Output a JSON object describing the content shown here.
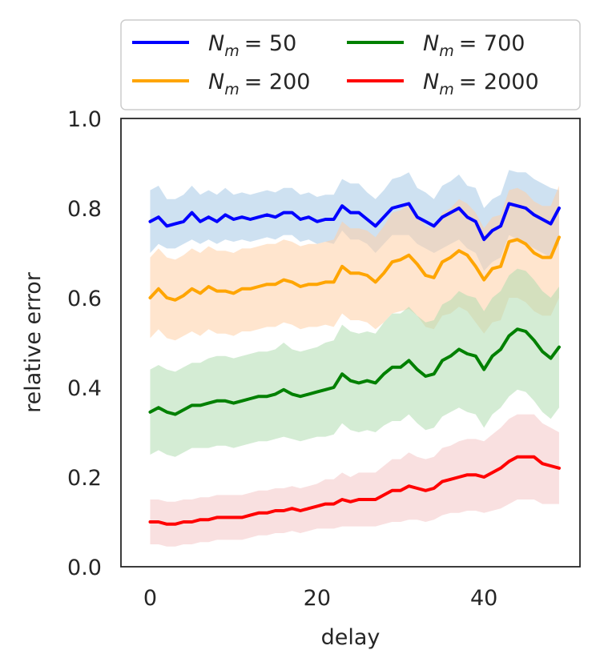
{
  "chart_data": {
    "type": "line",
    "title": "",
    "xlabel": "delay",
    "ylabel": "relative error",
    "xlim": [
      -3.5,
      51.5
    ],
    "ylim": [
      0.0,
      1.0
    ],
    "xticks": [
      0,
      20,
      40
    ],
    "xtick_labels": [
      "0",
      "20",
      "40"
    ],
    "yticks": [
      0.0,
      0.2,
      0.4,
      0.6,
      0.8,
      1.0
    ],
    "ytick_labels": [
      "0.0",
      "0.2",
      "0.4",
      "0.6",
      "0.8",
      "1.0"
    ],
    "grid": false,
    "legend_position": "above plot, two columns",
    "x": [
      0,
      1,
      2,
      3,
      4,
      5,
      6,
      7,
      8,
      9,
      10,
      11,
      12,
      13,
      14,
      15,
      16,
      17,
      18,
      19,
      20,
      21,
      22,
      23,
      24,
      25,
      26,
      27,
      28,
      29,
      30,
      31,
      32,
      33,
      34,
      35,
      36,
      37,
      38,
      39,
      40,
      41,
      42,
      43,
      44,
      45,
      46,
      47,
      48,
      49
    ],
    "series": [
      {
        "name": "N_m = 50",
        "legend_base": "N",
        "legend_sub": "m",
        "legend_value": "= 50",
        "color": "#0000ff",
        "band_color": "#a6c8e6",
        "values": [
          0.77,
          0.78,
          0.76,
          0.765,
          0.77,
          0.79,
          0.77,
          0.78,
          0.77,
          0.785,
          0.775,
          0.78,
          0.775,
          0.78,
          0.785,
          0.78,
          0.79,
          0.79,
          0.775,
          0.78,
          0.77,
          0.775,
          0.775,
          0.805,
          0.79,
          0.79,
          0.775,
          0.76,
          0.78,
          0.8,
          0.805,
          0.81,
          0.78,
          0.77,
          0.76,
          0.78,
          0.79,
          0.8,
          0.78,
          0.77,
          0.73,
          0.75,
          0.76,
          0.81,
          0.805,
          0.8,
          0.785,
          0.775,
          0.765,
          0.8
        ],
        "lower": [
          0.7,
          0.72,
          0.71,
          0.71,
          0.72,
          0.73,
          0.72,
          0.73,
          0.72,
          0.73,
          0.725,
          0.73,
          0.725,
          0.73,
          0.735,
          0.73,
          0.74,
          0.74,
          0.725,
          0.73,
          0.72,
          0.725,
          0.72,
          0.75,
          0.73,
          0.73,
          0.72,
          0.7,
          0.72,
          0.74,
          0.74,
          0.74,
          0.72,
          0.71,
          0.7,
          0.71,
          0.72,
          0.73,
          0.71,
          0.7,
          0.66,
          0.68,
          0.69,
          0.74,
          0.73,
          0.72,
          0.71,
          0.7,
          0.69,
          0.72
        ],
        "upper": [
          0.84,
          0.85,
          0.82,
          0.82,
          0.83,
          0.85,
          0.83,
          0.84,
          0.83,
          0.845,
          0.83,
          0.835,
          0.83,
          0.835,
          0.84,
          0.835,
          0.845,
          0.845,
          0.83,
          0.835,
          0.825,
          0.83,
          0.83,
          0.865,
          0.855,
          0.855,
          0.835,
          0.82,
          0.84,
          0.865,
          0.87,
          0.88,
          0.845,
          0.835,
          0.82,
          0.85,
          0.86,
          0.875,
          0.85,
          0.845,
          0.8,
          0.82,
          0.83,
          0.885,
          0.88,
          0.88,
          0.865,
          0.855,
          0.845,
          0.84
        ]
      },
      {
        "name": "N_m = 200",
        "legend_base": "N",
        "legend_sub": "m",
        "legend_value": "= 200",
        "color": "#ffa500",
        "band_color": "#ffcfa6",
        "values": [
          0.6,
          0.62,
          0.6,
          0.595,
          0.605,
          0.62,
          0.61,
          0.625,
          0.615,
          0.615,
          0.61,
          0.62,
          0.62,
          0.625,
          0.63,
          0.63,
          0.64,
          0.635,
          0.625,
          0.63,
          0.63,
          0.635,
          0.635,
          0.67,
          0.655,
          0.655,
          0.65,
          0.635,
          0.655,
          0.68,
          0.685,
          0.695,
          0.675,
          0.65,
          0.645,
          0.68,
          0.69,
          0.705,
          0.695,
          0.67,
          0.64,
          0.665,
          0.67,
          0.725,
          0.73,
          0.72,
          0.7,
          0.69,
          0.69,
          0.735
        ],
        "lower": [
          0.51,
          0.53,
          0.51,
          0.505,
          0.515,
          0.525,
          0.515,
          0.53,
          0.52,
          0.52,
          0.515,
          0.525,
          0.525,
          0.53,
          0.535,
          0.535,
          0.545,
          0.54,
          0.53,
          0.535,
          0.535,
          0.54,
          0.535,
          0.565,
          0.55,
          0.55,
          0.545,
          0.53,
          0.545,
          0.565,
          0.57,
          0.575,
          0.56,
          0.535,
          0.53,
          0.56,
          0.565,
          0.58,
          0.57,
          0.545,
          0.52,
          0.545,
          0.55,
          0.6,
          0.6,
          0.59,
          0.57,
          0.56,
          0.56,
          0.6
        ],
        "upper": [
          0.69,
          0.71,
          0.69,
          0.685,
          0.695,
          0.71,
          0.7,
          0.715,
          0.705,
          0.705,
          0.7,
          0.71,
          0.71,
          0.715,
          0.72,
          0.72,
          0.73,
          0.725,
          0.715,
          0.72,
          0.72,
          0.725,
          0.73,
          0.77,
          0.755,
          0.755,
          0.75,
          0.735,
          0.76,
          0.79,
          0.795,
          0.81,
          0.785,
          0.76,
          0.755,
          0.79,
          0.8,
          0.82,
          0.81,
          0.79,
          0.755,
          0.78,
          0.785,
          0.84,
          0.845,
          0.835,
          0.815,
          0.805,
          0.805,
          0.85
        ]
      },
      {
        "name": "N_m = 700",
        "legend_base": "N",
        "legend_sub": "m",
        "legend_value": "= 700",
        "color": "#008000",
        "band_color": "#b0dcb0",
        "values": [
          0.345,
          0.355,
          0.345,
          0.34,
          0.35,
          0.36,
          0.36,
          0.365,
          0.37,
          0.37,
          0.365,
          0.37,
          0.375,
          0.38,
          0.38,
          0.385,
          0.395,
          0.385,
          0.38,
          0.385,
          0.39,
          0.395,
          0.4,
          0.43,
          0.415,
          0.41,
          0.415,
          0.41,
          0.43,
          0.445,
          0.445,
          0.46,
          0.44,
          0.425,
          0.43,
          0.46,
          0.47,
          0.485,
          0.475,
          0.47,
          0.44,
          0.47,
          0.485,
          0.515,
          0.53,
          0.525,
          0.505,
          0.48,
          0.465,
          0.49
        ],
        "lower": [
          0.25,
          0.26,
          0.25,
          0.245,
          0.255,
          0.265,
          0.265,
          0.265,
          0.27,
          0.27,
          0.265,
          0.27,
          0.275,
          0.28,
          0.28,
          0.285,
          0.29,
          0.285,
          0.28,
          0.285,
          0.29,
          0.29,
          0.295,
          0.32,
          0.305,
          0.3,
          0.305,
          0.3,
          0.315,
          0.325,
          0.325,
          0.34,
          0.32,
          0.305,
          0.31,
          0.335,
          0.345,
          0.355,
          0.345,
          0.34,
          0.31,
          0.34,
          0.355,
          0.38,
          0.395,
          0.39,
          0.37,
          0.345,
          0.33,
          0.355
        ],
        "upper": [
          0.44,
          0.45,
          0.44,
          0.435,
          0.445,
          0.455,
          0.455,
          0.465,
          0.47,
          0.47,
          0.465,
          0.47,
          0.475,
          0.48,
          0.48,
          0.485,
          0.5,
          0.485,
          0.48,
          0.485,
          0.49,
          0.5,
          0.505,
          0.54,
          0.525,
          0.52,
          0.525,
          0.52,
          0.545,
          0.565,
          0.565,
          0.58,
          0.56,
          0.545,
          0.55,
          0.585,
          0.595,
          0.615,
          0.605,
          0.6,
          0.57,
          0.6,
          0.615,
          0.65,
          0.665,
          0.66,
          0.64,
          0.615,
          0.6,
          0.625
        ]
      },
      {
        "name": "N_m = 2000",
        "legend_base": "N",
        "legend_sub": "m",
        "legend_value": "= 2000",
        "color": "#ff0000",
        "band_color": "#f4c7c7",
        "values": [
          0.1,
          0.1,
          0.095,
          0.095,
          0.1,
          0.1,
          0.105,
          0.105,
          0.11,
          0.11,
          0.11,
          0.11,
          0.115,
          0.12,
          0.12,
          0.125,
          0.125,
          0.13,
          0.125,
          0.13,
          0.135,
          0.14,
          0.14,
          0.15,
          0.145,
          0.15,
          0.15,
          0.15,
          0.16,
          0.17,
          0.17,
          0.18,
          0.175,
          0.17,
          0.175,
          0.19,
          0.195,
          0.2,
          0.205,
          0.205,
          0.2,
          0.21,
          0.22,
          0.235,
          0.245,
          0.245,
          0.245,
          0.23,
          0.225,
          0.22
        ],
        "lower": [
          0.05,
          0.05,
          0.045,
          0.045,
          0.05,
          0.05,
          0.055,
          0.055,
          0.06,
          0.06,
          0.06,
          0.06,
          0.065,
          0.07,
          0.07,
          0.075,
          0.075,
          0.08,
          0.075,
          0.08,
          0.085,
          0.085,
          0.085,
          0.09,
          0.09,
          0.09,
          0.09,
          0.09,
          0.095,
          0.1,
          0.1,
          0.105,
          0.105,
          0.1,
          0.105,
          0.115,
          0.12,
          0.12,
          0.125,
          0.125,
          0.12,
          0.125,
          0.13,
          0.14,
          0.15,
          0.15,
          0.15,
          0.14,
          0.14,
          0.14
        ],
        "upper": [
          0.15,
          0.15,
          0.145,
          0.145,
          0.15,
          0.15,
          0.155,
          0.155,
          0.16,
          0.16,
          0.16,
          0.16,
          0.165,
          0.17,
          0.17,
          0.175,
          0.175,
          0.18,
          0.175,
          0.18,
          0.185,
          0.195,
          0.195,
          0.21,
          0.2,
          0.21,
          0.21,
          0.21,
          0.225,
          0.24,
          0.24,
          0.255,
          0.245,
          0.24,
          0.245,
          0.265,
          0.27,
          0.28,
          0.285,
          0.285,
          0.28,
          0.295,
          0.31,
          0.33,
          0.34,
          0.34,
          0.34,
          0.32,
          0.31,
          0.3
        ]
      }
    ]
  }
}
